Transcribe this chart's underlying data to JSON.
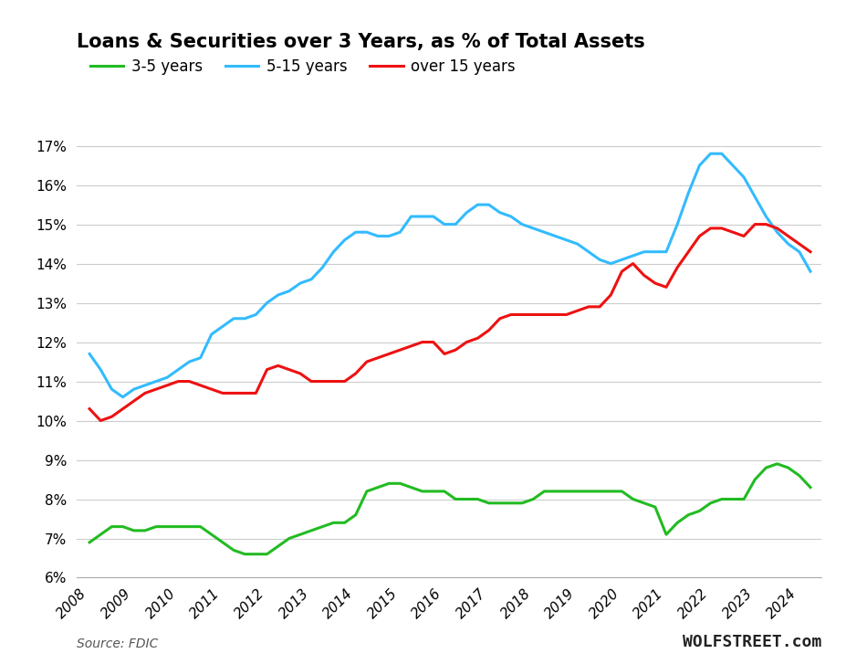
{
  "title": "Loans & Securities over 3 Years, as % of Total Assets",
  "source_text": "Source: FDIC",
  "watermark": "WOLFSTREET.com",
  "ylim": [
    0.06,
    0.175
  ],
  "yticks": [
    0.06,
    0.07,
    0.08,
    0.09,
    0.1,
    0.11,
    0.12,
    0.13,
    0.14,
    0.15,
    0.16,
    0.17
  ],
  "series_3_5": {
    "label": "3-5 years",
    "color": "#22bb22",
    "x": [
      2008.0,
      2008.25,
      2008.5,
      2008.75,
      2009.0,
      2009.25,
      2009.5,
      2009.75,
      2010.0,
      2010.25,
      2010.5,
      2010.75,
      2011.0,
      2011.25,
      2011.5,
      2011.75,
      2012.0,
      2012.25,
      2012.5,
      2012.75,
      2013.0,
      2013.25,
      2013.5,
      2013.75,
      2014.0,
      2014.25,
      2014.5,
      2014.75,
      2015.0,
      2015.25,
      2015.5,
      2015.75,
      2016.0,
      2016.25,
      2016.5,
      2016.75,
      2017.0,
      2017.25,
      2017.5,
      2017.75,
      2018.0,
      2018.25,
      2018.5,
      2018.75,
      2019.0,
      2019.25,
      2019.5,
      2019.75,
      2020.0,
      2020.25,
      2020.5,
      2020.75,
      2021.0,
      2021.25,
      2021.5,
      2021.75,
      2022.0,
      2022.25,
      2022.5,
      2022.75,
      2023.0,
      2023.25,
      2023.5,
      2023.75,
      2024.0,
      2024.25
    ],
    "y": [
      0.069,
      0.071,
      0.073,
      0.073,
      0.072,
      0.072,
      0.073,
      0.073,
      0.073,
      0.073,
      0.073,
      0.071,
      0.069,
      0.067,
      0.066,
      0.066,
      0.066,
      0.068,
      0.07,
      0.071,
      0.072,
      0.073,
      0.074,
      0.074,
      0.076,
      0.082,
      0.083,
      0.084,
      0.084,
      0.083,
      0.082,
      0.082,
      0.082,
      0.08,
      0.08,
      0.08,
      0.079,
      0.079,
      0.079,
      0.079,
      0.08,
      0.082,
      0.082,
      0.082,
      0.082,
      0.082,
      0.082,
      0.082,
      0.082,
      0.08,
      0.079,
      0.078,
      0.071,
      0.074,
      0.076,
      0.077,
      0.079,
      0.08,
      0.08,
      0.08,
      0.085,
      0.088,
      0.089,
      0.088,
      0.086,
      0.083
    ]
  },
  "series_5_15": {
    "label": "5-15 years",
    "color": "#33bbff",
    "x": [
      2008.0,
      2008.25,
      2008.5,
      2008.75,
      2009.0,
      2009.25,
      2009.5,
      2009.75,
      2010.0,
      2010.25,
      2010.5,
      2010.75,
      2011.0,
      2011.25,
      2011.5,
      2011.75,
      2012.0,
      2012.25,
      2012.5,
      2012.75,
      2013.0,
      2013.25,
      2013.5,
      2013.75,
      2014.0,
      2014.25,
      2014.5,
      2014.75,
      2015.0,
      2015.25,
      2015.5,
      2015.75,
      2016.0,
      2016.25,
      2016.5,
      2016.75,
      2017.0,
      2017.25,
      2017.5,
      2017.75,
      2018.0,
      2018.25,
      2018.5,
      2018.75,
      2019.0,
      2019.25,
      2019.5,
      2019.75,
      2020.0,
      2020.25,
      2020.5,
      2020.75,
      2021.0,
      2021.25,
      2021.5,
      2021.75,
      2022.0,
      2022.25,
      2022.5,
      2022.75,
      2023.0,
      2023.25,
      2023.5,
      2023.75,
      2024.0,
      2024.25
    ],
    "y": [
      0.117,
      0.113,
      0.108,
      0.106,
      0.108,
      0.109,
      0.11,
      0.111,
      0.113,
      0.115,
      0.116,
      0.122,
      0.124,
      0.126,
      0.126,
      0.127,
      0.13,
      0.132,
      0.133,
      0.135,
      0.136,
      0.139,
      0.143,
      0.146,
      0.148,
      0.148,
      0.147,
      0.147,
      0.148,
      0.152,
      0.152,
      0.152,
      0.15,
      0.15,
      0.153,
      0.155,
      0.155,
      0.153,
      0.152,
      0.15,
      0.149,
      0.148,
      0.147,
      0.146,
      0.145,
      0.143,
      0.141,
      0.14,
      0.141,
      0.142,
      0.143,
      0.143,
      0.143,
      0.15,
      0.158,
      0.165,
      0.168,
      0.168,
      0.165,
      0.162,
      0.157,
      0.152,
      0.148,
      0.145,
      0.143,
      0.138
    ]
  },
  "series_over15": {
    "label": "over 15 years",
    "color": "#ee1111",
    "x": [
      2008.0,
      2008.25,
      2008.5,
      2008.75,
      2009.0,
      2009.25,
      2009.5,
      2009.75,
      2010.0,
      2010.25,
      2010.5,
      2010.75,
      2011.0,
      2011.25,
      2011.5,
      2011.75,
      2012.0,
      2012.25,
      2012.5,
      2012.75,
      2013.0,
      2013.25,
      2013.5,
      2013.75,
      2014.0,
      2014.25,
      2014.5,
      2014.75,
      2015.0,
      2015.25,
      2015.5,
      2015.75,
      2016.0,
      2016.25,
      2016.5,
      2016.75,
      2017.0,
      2017.25,
      2017.5,
      2017.75,
      2018.0,
      2018.25,
      2018.5,
      2018.75,
      2019.0,
      2019.25,
      2019.5,
      2019.75,
      2020.0,
      2020.25,
      2020.5,
      2020.75,
      2021.0,
      2021.25,
      2021.5,
      2021.75,
      2022.0,
      2022.25,
      2022.5,
      2022.75,
      2023.0,
      2023.25,
      2023.5,
      2023.75,
      2024.0,
      2024.25
    ],
    "y": [
      0.103,
      0.1,
      0.101,
      0.103,
      0.105,
      0.107,
      0.108,
      0.109,
      0.11,
      0.11,
      0.109,
      0.108,
      0.107,
      0.107,
      0.107,
      0.107,
      0.113,
      0.114,
      0.113,
      0.112,
      0.11,
      0.11,
      0.11,
      0.11,
      0.112,
      0.115,
      0.116,
      0.117,
      0.118,
      0.119,
      0.12,
      0.12,
      0.117,
      0.118,
      0.12,
      0.121,
      0.123,
      0.126,
      0.127,
      0.127,
      0.127,
      0.127,
      0.127,
      0.127,
      0.128,
      0.129,
      0.129,
      0.132,
      0.138,
      0.14,
      0.137,
      0.135,
      0.134,
      0.139,
      0.143,
      0.147,
      0.149,
      0.149,
      0.148,
      0.147,
      0.15,
      0.15,
      0.149,
      0.147,
      0.145,
      0.143
    ]
  }
}
